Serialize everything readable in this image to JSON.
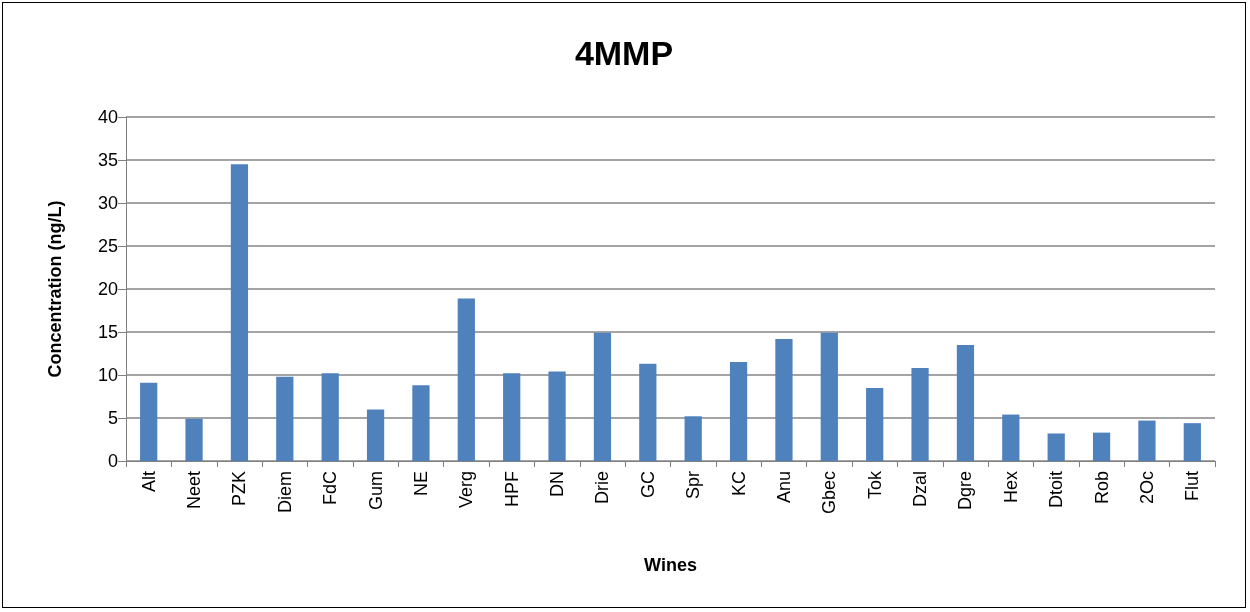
{
  "chart_data": {
    "type": "bar",
    "title": "4MMP",
    "xlabel": "Wines",
    "ylabel": "Concentration (ng/L)",
    "categories": [
      "Alt",
      "Neet",
      "PZK",
      "Diem",
      "FdC",
      "Gum",
      "NE",
      "Verg",
      "HPF",
      "DN",
      "Drie",
      "GC",
      "Spr",
      "KC",
      "Anu",
      "Gbec",
      "Tok",
      "Dzal",
      "Dgre",
      "Hex",
      "Dtoit",
      "Rob",
      "2Oc",
      "Flut"
    ],
    "values": [
      9.1,
      4.9,
      34.5,
      9.8,
      10.2,
      6.0,
      8.8,
      18.9,
      10.2,
      10.4,
      14.9,
      11.3,
      5.2,
      11.5,
      14.2,
      14.9,
      8.5,
      10.8,
      13.5,
      5.4,
      3.2,
      3.3,
      4.7,
      4.4
    ],
    "color": "#4f81bd",
    "ylim": [
      0,
      40
    ],
    "yticks": [
      0,
      5,
      10,
      15,
      20,
      25,
      30,
      35,
      40
    ],
    "grid": "y"
  }
}
